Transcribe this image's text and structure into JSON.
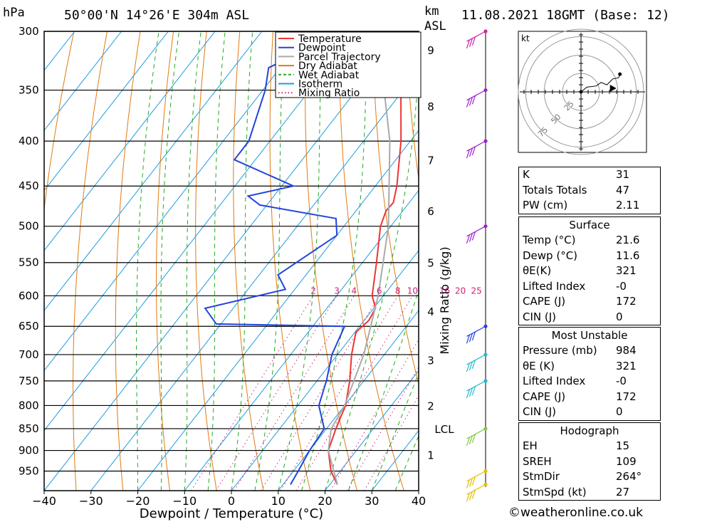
{
  "header": {
    "hpa_unit": "hPa",
    "location": "50°00'N 14°26'E 304m ASL",
    "km_unit": "km",
    "asl_label": "ASL",
    "datetime": "11.08.2021 18GMT (Base: 12)"
  },
  "legend": [
    {
      "label": "Temperature",
      "color": "#ee3333",
      "style": "solid"
    },
    {
      "label": "Dewpoint",
      "color": "#2244dd",
      "style": "solid"
    },
    {
      "label": "Parcel Trajectory",
      "color": "#aaaaaa",
      "style": "solid"
    },
    {
      "label": "Dry Adiabat",
      "color": "#e07b10",
      "style": "solid"
    },
    {
      "label": "Wet Adiabat",
      "color": "#22aa22",
      "style": "dashed"
    },
    {
      "label": "Isotherm",
      "color": "#1e9be0",
      "style": "solid"
    },
    {
      "label": "Mixing Ratio",
      "color": "#cc2277",
      "style": "dotted"
    }
  ],
  "chart_data": {
    "type": "line",
    "subtype": "skew-T log-P sounding",
    "xlabel": "Dewpoint / Temperature (°C)",
    "x_ticks": [
      -40,
      -30,
      -20,
      -10,
      0,
      10,
      20,
      30,
      40
    ],
    "pressure_ticks": [
      300,
      350,
      400,
      450,
      500,
      550,
      600,
      650,
      700,
      750,
      800,
      850,
      900,
      950
    ],
    "height_km_ticks": [
      {
        "km": 1,
        "p": 910
      },
      {
        "km": 2,
        "p": 800
      },
      {
        "km": 3,
        "p": 710
      },
      {
        "km": 4,
        "p": 625
      },
      {
        "km": 5,
        "p": 550
      },
      {
        "km": 6,
        "p": 480
      },
      {
        "km": 7,
        "p": 420
      },
      {
        "km": 8,
        "p": 365
      },
      {
        "km": 9,
        "p": 315
      }
    ],
    "lcl_label": "LCL",
    "lcl_pressure": 850,
    "mixing_ratio_axis_label": "Mixing Ratio (g/kg)",
    "mixing_ratio_values": [
      2,
      3,
      4,
      6,
      8,
      10,
      16,
      20,
      25
    ],
    "mixing_ratio_label_pressure": 600,
    "series": [
      {
        "name": "Temperature",
        "color": "#ee3333",
        "points": [
          [
            984,
            21.6
          ],
          [
            950,
            18.0
          ],
          [
            900,
            14.0
          ],
          [
            850,
            12.0
          ],
          [
            800,
            10.2
          ],
          [
            750,
            7.0
          ],
          [
            700,
            3.0
          ],
          [
            660,
            0.2
          ],
          [
            650,
            0.6
          ],
          [
            640,
            1.0
          ],
          [
            620,
            0.4
          ],
          [
            600,
            -2.4
          ],
          [
            550,
            -7.0
          ],
          [
            500,
            -12.2
          ],
          [
            480,
            -13.6
          ],
          [
            470,
            -13.4
          ],
          [
            450,
            -15.4
          ],
          [
            400,
            -22.0
          ],
          [
            350,
            -30.5
          ],
          [
            300,
            -41.0
          ]
        ]
      },
      {
        "name": "Dewpoint",
        "color": "#2244dd",
        "points": [
          [
            984,
            11.6
          ],
          [
            950,
            11.0
          ],
          [
            900,
            10.0
          ],
          [
            850,
            9.5
          ],
          [
            800,
            4.5
          ],
          [
            750,
            2.0
          ],
          [
            700,
            -1.2
          ],
          [
            650,
            -3.2
          ],
          [
            646,
            -31.0
          ],
          [
            620,
            -36.0
          ],
          [
            590,
            -22.0
          ],
          [
            568,
            -26.0
          ],
          [
            512,
            -20.0
          ],
          [
            490,
            -23.0
          ],
          [
            473,
            -41.5
          ],
          [
            462,
            -45.5
          ],
          [
            450,
            -37.5
          ],
          [
            420,
            -54.5
          ],
          [
            400,
            -54.5
          ],
          [
            350,
            -59.5
          ],
          [
            330,
            -62.5
          ],
          [
            318,
            -58.5
          ],
          [
            300,
            -62.5
          ]
        ]
      },
      {
        "name": "Parcel Trajectory",
        "color": "#aaaaaa",
        "points": [
          [
            984,
            21.6
          ],
          [
            900,
            14.0
          ],
          [
            850,
            11.0
          ],
          [
            800,
            10.0
          ],
          [
            700,
            5.6
          ],
          [
            600,
            -1.1
          ],
          [
            500,
            -10.5
          ],
          [
            400,
            -24.4
          ],
          [
            300,
            -45.3
          ]
        ]
      }
    ],
    "wind_barbs": [
      {
        "p": 984,
        "color": "#e0c000"
      },
      {
        "p": 950,
        "color": "#e0c000"
      },
      {
        "p": 850,
        "color": "#7ec840"
      },
      {
        "p": 750,
        "color": "#22b8cc"
      },
      {
        "p": 700,
        "color": "#22b8cc"
      },
      {
        "p": 650,
        "color": "#2244dd"
      },
      {
        "p": 500,
        "color": "#9922cc"
      },
      {
        "p": 400,
        "color": "#9922cc"
      },
      {
        "p": 350,
        "color": "#9922cc"
      },
      {
        "p": 300,
        "color": "#cc22aa"
      }
    ],
    "hodograph": {
      "unit": "kt",
      "ring_labels": [
        25,
        50,
        75
      ],
      "trace": [
        [
          0,
          0
        ],
        [
          5,
          4
        ],
        [
          13,
          5
        ],
        [
          17,
          8
        ],
        [
          22,
          6
        ],
        [
          27,
          11
        ],
        [
          32,
          12
        ],
        [
          33,
          15
        ]
      ],
      "storm_motion": {
        "u": 27,
        "v": 3
      }
    }
  },
  "indices": [
    {
      "label": "K",
      "value": "31"
    },
    {
      "label": "Totals Totals",
      "value": "47"
    },
    {
      "label": "PW (cm)",
      "value": "2.11"
    }
  ],
  "surface": {
    "title": "Surface",
    "rows": [
      {
        "label": "Temp (°C)",
        "value": "21.6"
      },
      {
        "label": "Dewp (°C)",
        "value": "11.6"
      },
      {
        "label": "θE(K)",
        "value": "321"
      },
      {
        "label": "Lifted Index",
        "value": "-0"
      },
      {
        "label": "CAPE (J)",
        "value": "172"
      },
      {
        "label": "CIN (J)",
        "value": "0"
      }
    ]
  },
  "most_unstable": {
    "title": "Most Unstable",
    "rows": [
      {
        "label": "Pressure (mb)",
        "value": "984"
      },
      {
        "label": "θE (K)",
        "value": "321"
      },
      {
        "label": "Lifted Index",
        "value": "-0"
      },
      {
        "label": "CAPE (J)",
        "value": "172"
      },
      {
        "label": "CIN (J)",
        "value": "0"
      }
    ]
  },
  "hodograph_table": {
    "title": "Hodograph",
    "rows": [
      {
        "label": "EH",
        "value": "15"
      },
      {
        "label": "SREH",
        "value": "109"
      },
      {
        "label": "StmDir",
        "value": "264°"
      },
      {
        "label": "StmSpd (kt)",
        "value": "27"
      }
    ]
  },
  "copyright": "©weatheronline.co.uk"
}
